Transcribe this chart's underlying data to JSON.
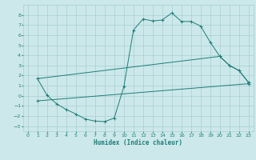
{
  "xlabel": "Humidex (Indice chaleur)",
  "bg_color": "#cce8ea",
  "grid_color": "#a8cfd2",
  "line_color": "#1e7d78",
  "xlim": [
    -0.5,
    23.5
  ],
  "ylim": [
    -3.5,
    9.0
  ],
  "xticks": [
    0,
    1,
    2,
    3,
    4,
    5,
    6,
    7,
    8,
    9,
    10,
    11,
    12,
    13,
    14,
    15,
    16,
    17,
    18,
    19,
    20,
    21,
    22,
    23
  ],
  "yticks": [
    -3,
    -2,
    -1,
    0,
    1,
    2,
    3,
    4,
    5,
    6,
    7,
    8
  ],
  "curve1_x": [
    1,
    2,
    3,
    4,
    5,
    6,
    7,
    8,
    9,
    10,
    11,
    12,
    13,
    14,
    15,
    16,
    17,
    18,
    19,
    20,
    21,
    22,
    23
  ],
  "curve1_y": [
    1.7,
    0.05,
    -0.8,
    -1.35,
    -1.8,
    -2.3,
    -2.5,
    -2.55,
    -2.2,
    0.9,
    6.5,
    7.6,
    7.4,
    7.5,
    8.2,
    7.35,
    7.35,
    6.9,
    5.3,
    3.9,
    3.0,
    2.5,
    1.3
  ],
  "curve2_x": [
    1,
    20,
    21,
    22,
    23
  ],
  "curve2_y": [
    1.7,
    3.9,
    3.0,
    2.5,
    1.3
  ],
  "curve3_x": [
    1,
    23
  ],
  "curve3_y": [
    -0.5,
    1.2
  ]
}
